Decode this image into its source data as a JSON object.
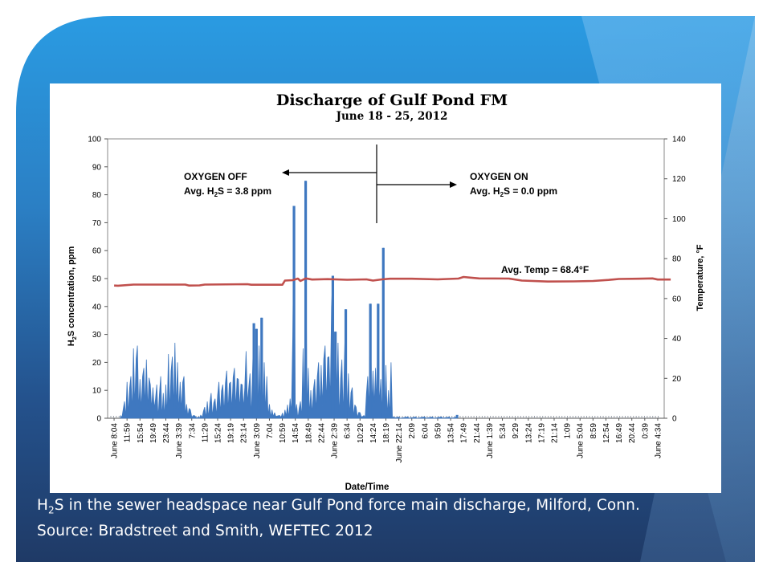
{
  "caption": {
    "line1_prefix": "H",
    "line1_sub": "2",
    "line1_rest": "S in the sewer headspace near Gulf Pond force main discharge, Milford, Conn.",
    "line2": "Source: Bradstreet and Smith, WEFTEC 2012"
  },
  "chart_data": {
    "type": "line",
    "title": "Discharge of Gulf Pond FM",
    "subtitle": "June 18 - 25, 2012",
    "xlabel": "Date/Time",
    "ylabel_left_prefix": "H",
    "ylabel_left_sub": "2",
    "ylabel_left_rest": "S concentration, ppm",
    "ylabel_right": "Temperature, °F",
    "ylim_left": [
      0,
      100
    ],
    "ylim_right": [
      0,
      140
    ],
    "yticks_left": [
      "0",
      "10",
      "20",
      "30",
      "40",
      "50",
      "60",
      "70",
      "80",
      "90",
      "100"
    ],
    "yticks_right": [
      "0",
      "20",
      "40",
      "60",
      "80",
      "100",
      "120",
      "140"
    ],
    "x_tick_labels": [
      "June 8:04",
      "11:59",
      "15:54",
      "19:49",
      "23:44",
      "June 3:39",
      "7:34",
      "11:29",
      "15:24",
      "19:19",
      "23:14",
      "June 3:09",
      "7:04",
      "10:59",
      "14:54",
      "18:49",
      "22:44",
      "June 2:39",
      "6:34",
      "10:29",
      "14:24",
      "18:19",
      "June 22:14",
      "2:09",
      "6:04",
      "9:59",
      "13:54",
      "17:49",
      "21:44",
      "June 1:39",
      "5:34",
      "9:29",
      "13:24",
      "17:19",
      "21:14",
      "1:09",
      "June 5:04",
      "8:59",
      "12:54",
      "16:49",
      "20:44",
      "0:39",
      "June 4:34"
    ],
    "grid": false,
    "annotations": {
      "oxygen_off_title": "OXYGEN OFF",
      "oxygen_off_avg_prefix": "Avg. H",
      "oxygen_off_avg_sub": "2",
      "oxygen_off_avg_rest": "S = 3.8 ppm",
      "oxygen_on_title": "OXYGEN ON",
      "oxygen_on_avg_prefix": "Avg. H",
      "oxygen_on_avg_sub": "2",
      "oxygen_on_avg_rest": "S = 0.0 ppm",
      "avg_temp": "Avg. Temp = 68.4°F"
    },
    "series": [
      {
        "role": "h2s",
        "axis": "left",
        "color": "#3f78c0",
        "peaks": [
          {
            "x": 0.5,
            "y": 1
          },
          {
            "x": 0.8,
            "y": 6
          },
          {
            "x": 1.0,
            "y": 13
          },
          {
            "x": 1.3,
            "y": 15
          },
          {
            "x": 1.5,
            "y": 25
          },
          {
            "x": 1.8,
            "y": 26
          },
          {
            "x": 2.0,
            "y": 14
          },
          {
            "x": 2.3,
            "y": 18
          },
          {
            "x": 2.5,
            "y": 21
          },
          {
            "x": 2.8,
            "y": 12
          },
          {
            "x": 3.0,
            "y": 11
          },
          {
            "x": 3.3,
            "y": 12
          },
          {
            "x": 3.6,
            "y": 15
          },
          {
            "x": 3.8,
            "y": 9
          },
          {
            "x": 4.0,
            "y": 12
          },
          {
            "x": 4.2,
            "y": 23
          },
          {
            "x": 4.5,
            "y": 22
          },
          {
            "x": 4.7,
            "y": 27
          },
          {
            "x": 4.9,
            "y": 20
          },
          {
            "x": 5.1,
            "y": 13
          },
          {
            "x": 5.4,
            "y": 15
          },
          {
            "x": 5.6,
            "y": 5
          },
          {
            "x": 5.9,
            "y": 3
          },
          {
            "x": 6.2,
            "y": 1
          },
          {
            "x": 6.5,
            "y": 0.5
          },
          {
            "x": 7.0,
            "y": 4
          },
          {
            "x": 7.2,
            "y": 6
          },
          {
            "x": 7.5,
            "y": 9
          },
          {
            "x": 7.8,
            "y": 7
          },
          {
            "x": 8.1,
            "y": 13
          },
          {
            "x": 8.4,
            "y": 12
          },
          {
            "x": 8.7,
            "y": 17
          },
          {
            "x": 9.0,
            "y": 13
          },
          {
            "x": 9.3,
            "y": 18
          },
          {
            "x": 9.6,
            "y": 14
          },
          {
            "x": 9.9,
            "y": 12
          },
          {
            "x": 10.2,
            "y": 24
          },
          {
            "x": 10.5,
            "y": 16
          },
          {
            "x": 10.8,
            "y": 34
          },
          {
            "x": 11.0,
            "y": 32
          },
          {
            "x": 11.2,
            "y": 26
          },
          {
            "x": 11.4,
            "y": 36
          },
          {
            "x": 11.6,
            "y": 20
          },
          {
            "x": 11.8,
            "y": 15
          },
          {
            "x": 12.0,
            "y": 5
          },
          {
            "x": 12.4,
            "y": 2
          },
          {
            "x": 12.8,
            "y": 1
          },
          {
            "x": 13.2,
            "y": 3
          },
          {
            "x": 13.6,
            "y": 7
          },
          {
            "x": 13.9,
            "y": 76
          },
          {
            "x": 14.1,
            "y": 5
          },
          {
            "x": 14.4,
            "y": 6
          },
          {
            "x": 14.6,
            "y": 25
          },
          {
            "x": 14.8,
            "y": 85
          },
          {
            "x": 15.0,
            "y": 18
          },
          {
            "x": 15.2,
            "y": 10
          },
          {
            "x": 15.5,
            "y": 14
          },
          {
            "x": 15.8,
            "y": 20
          },
          {
            "x": 16.0,
            "y": 19
          },
          {
            "x": 16.3,
            "y": 26
          },
          {
            "x": 16.6,
            "y": 22
          },
          {
            "x": 16.9,
            "y": 51
          },
          {
            "x": 17.1,
            "y": 31
          },
          {
            "x": 17.3,
            "y": 27
          },
          {
            "x": 17.6,
            "y": 21
          },
          {
            "x": 17.9,
            "y": 39
          },
          {
            "x": 18.1,
            "y": 16
          },
          {
            "x": 18.4,
            "y": 11
          },
          {
            "x": 18.7,
            "y": 4
          },
          {
            "x": 19.0,
            "y": 2
          },
          {
            "x": 19.3,
            "y": 1
          },
          {
            "x": 19.6,
            "y": 15
          },
          {
            "x": 19.8,
            "y": 41
          },
          {
            "x": 20.0,
            "y": 17
          },
          {
            "x": 20.2,
            "y": 18
          },
          {
            "x": 20.4,
            "y": 41
          },
          {
            "x": 20.6,
            "y": 14
          },
          {
            "x": 20.8,
            "y": 61
          },
          {
            "x": 21.0,
            "y": 19
          },
          {
            "x": 21.2,
            "y": 10
          },
          {
            "x": 21.4,
            "y": 20
          },
          {
            "x": 21.6,
            "y": 0.5
          },
          {
            "x": 26.5,
            "y": 1
          }
        ]
      },
      {
        "role": "temperature",
        "axis": "right",
        "color": "#c0504d",
        "points": [
          {
            "x": 0.0,
            "y": 66.5
          },
          {
            "x": 0.3,
            "y": 66.4
          },
          {
            "x": 1.5,
            "y": 67.0
          },
          {
            "x": 5.5,
            "y": 67.0
          },
          {
            "x": 5.8,
            "y": 66.5
          },
          {
            "x": 6.6,
            "y": 66.6
          },
          {
            "x": 7.0,
            "y": 67.0
          },
          {
            "x": 10.3,
            "y": 67.2
          },
          {
            "x": 10.6,
            "y": 66.9
          },
          {
            "x": 13.0,
            "y": 66.9
          },
          {
            "x": 13.2,
            "y": 69.0
          },
          {
            "x": 13.8,
            "y": 69.2
          },
          {
            "x": 14.2,
            "y": 70.0
          },
          {
            "x": 14.4,
            "y": 68.8
          },
          {
            "x": 14.8,
            "y": 70.1
          },
          {
            "x": 15.3,
            "y": 69.5
          },
          {
            "x": 16.5,
            "y": 69.7
          },
          {
            "x": 18.0,
            "y": 69.4
          },
          {
            "x": 19.5,
            "y": 69.6
          },
          {
            "x": 20.0,
            "y": 69.0
          },
          {
            "x": 20.7,
            "y": 69.6
          },
          {
            "x": 21.3,
            "y": 69.9
          },
          {
            "x": 23.0,
            "y": 69.9
          },
          {
            "x": 25.0,
            "y": 69.6
          },
          {
            "x": 26.6,
            "y": 70.0
          },
          {
            "x": 27.0,
            "y": 70.8
          },
          {
            "x": 27.5,
            "y": 70.5
          },
          {
            "x": 28.2,
            "y": 70.1
          },
          {
            "x": 30.5,
            "y": 70.0
          },
          {
            "x": 31.5,
            "y": 69.0
          },
          {
            "x": 33.5,
            "y": 68.5
          },
          {
            "x": 35.5,
            "y": 68.6
          },
          {
            "x": 37.0,
            "y": 68.8
          },
          {
            "x": 38.2,
            "y": 69.3
          },
          {
            "x": 39.0,
            "y": 69.8
          },
          {
            "x": 40.5,
            "y": 69.9
          },
          {
            "x": 41.6,
            "y": 70.1
          },
          {
            "x": 42.0,
            "y": 69.5
          },
          {
            "x": 43.0,
            "y": 69.5
          }
        ]
      }
    ]
  }
}
